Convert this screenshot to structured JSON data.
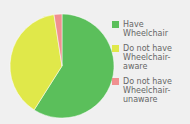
{
  "chart_data": {
    "type": "pie",
    "categories": [
      "Have\nWheelchair",
      "Do not have\nWheelchair-\naware",
      "Do not have\nWheelchair-\nunaware"
    ],
    "values": [
      59,
      38.54,
      2.46
    ],
    "colors": [
      "#5bbf5b",
      "#e0e84a",
      "#f09090"
    ],
    "legend": "right"
  }
}
